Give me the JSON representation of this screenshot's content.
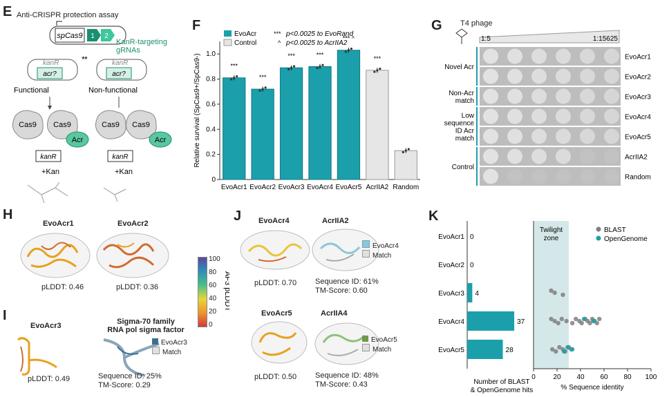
{
  "panels": {
    "e": {
      "letter": "E",
      "title": "Anti-CRISPR protection assay",
      "spcas9": "spCas9",
      "g1": "1",
      "g2": "2",
      "targeting1": "KanR-targeting",
      "targeting2": "gRNAs",
      "kanr": "kanR",
      "acr_q": "acr?",
      "functional": "Functional",
      "nonfunctional": "Non-functional",
      "cas9": "Cas9",
      "acr": "Acr",
      "kan": "+Kan",
      "star": "*"
    },
    "f": {
      "letter": "F",
      "legend_evo": "EvoAcr",
      "legend_ctrl": "Control",
      "note1_sym": "***",
      "note1": "p<0.0025 to EvoRand",
      "note2_sym": "^",
      "note2": "p<0.0025 to AcrIIA2",
      "ylabel": "Relative survival (SpCas9+/SpCas9-)"
    },
    "g": {
      "letter": "G",
      "title": "T4 phage",
      "dil_start": "1:5",
      "dil_end": "1:15625",
      "groups": [
        "Novel Acr",
        "Non-Acr match",
        "Low sequence ID Acr match",
        "Control"
      ],
      "rows": [
        "EvoAcr1",
        "EvoAcr2",
        "EvoAcr3",
        "EvoAcr4",
        "EvoAcr5",
        "AcrIIA2",
        "Random"
      ]
    },
    "h": {
      "letter": "H",
      "s1_name": "EvoAcr1",
      "s1_plddt": "pLDDT: 0.46",
      "s2_name": "EvoAcr2",
      "s2_plddt": "pLDDT: 0.36"
    },
    "i": {
      "letter": "I",
      "s1_name": "EvoAcr3",
      "s1_plddt": "pLDDT: 0.49",
      "match_title1": "Sigma-70 family",
      "match_title2": "RNA pol sigma factor",
      "leg_query": "EvoAcr3",
      "leg_match": "Match",
      "seqid": "Sequence ID: 25%",
      "tm": "TM-Score: 0.29"
    },
    "colorbar": {
      "label": "AF3 pLDDT",
      "ticks": [
        "100",
        "80",
        "60",
        "40",
        "20",
        "0"
      ]
    },
    "j": {
      "letter": "J",
      "s1_name": "EvoAcr4",
      "s1_plddt": "pLDDT: 0.70",
      "m1_name": "AcrIIA2",
      "m1_leg_query": "EvoAcr4",
      "m1_leg_match": "Match",
      "m1_seqid": "Sequence ID: 61%",
      "m1_tm": "TM-Score: 0.60",
      "s2_name": "EvoAcr5",
      "s2_plddt": "pLDDT: 0.50",
      "m2_name": "AcrIIA4",
      "m2_leg_query": "EvoAcr5",
      "m2_leg_match": "Match",
      "m2_seqid": "Sequence ID: 48%",
      "m2_tm": "TM-Score: 0.43"
    },
    "k": {
      "letter": "K",
      "twilight1": "Twilight",
      "twilight2": "zone",
      "legend_blast": "BLAST",
      "legend_og": "OpenGenome",
      "xlabel_left1": "Number of BLAST",
      "xlabel_left2": "& OpenGenome hits",
      "xlabel_right": "% Sequence identity"
    }
  },
  "chart_data": [
    {
      "type": "bar",
      "title": "",
      "xlabel": "",
      "ylabel": "Relative survival (SpCas9+/SpCas9-)",
      "ylim": [
        0,
        1.1
      ],
      "yticks": [
        "0",
        "0.2",
        "0.4",
        "0.6",
        "0.8",
        "1.0"
      ],
      "categories": [
        "EvoAcr1",
        "EvoAcr2",
        "EvoAcr3",
        "EvoAcr4",
        "EvoAcr5",
        "AcrIIA2",
        "Random"
      ],
      "values": [
        0.81,
        0.72,
        0.89,
        0.9,
        1.03,
        0.87,
        0.23
      ],
      "groups": [
        "EvoAcr",
        "EvoAcr",
        "EvoAcr",
        "EvoAcr",
        "EvoAcr",
        "Control",
        "Control"
      ],
      "annotations": [
        "***",
        "***",
        "***",
        "***",
        "*** ^",
        "***",
        ""
      ],
      "colors": {
        "EvoAcr": "#1a9fab",
        "Control": "#e6e6e6"
      }
    },
    {
      "type": "bar",
      "orientation": "horizontal",
      "xlabel": "Number of BLAST & OpenGenome hits",
      "categories": [
        "EvoAcr1",
        "EvoAcr2",
        "EvoAcr3",
        "EvoAcr4",
        "EvoAcr5"
      ],
      "values": [
        0,
        0,
        4,
        37,
        28
      ],
      "labels": [
        "0",
        "0",
        "4",
        "37",
        "28"
      ],
      "xlim": [
        0,
        50
      ],
      "color": "#1a9fab"
    },
    {
      "type": "scatter",
      "xlabel": "% Sequence identity",
      "xlim": [
        0,
        100
      ],
      "xticks": [
        "0",
        "20",
        "40",
        "60",
        "80",
        "100"
      ],
      "twilight_zone": [
        0,
        30
      ],
      "series": [
        {
          "name": "BLAST",
          "color": "#7f7f7f",
          "points": [
            {
              "cat": "EvoAcr3",
              "x": 15
            },
            {
              "cat": "EvoAcr3",
              "x": 18
            },
            {
              "cat": "EvoAcr3",
              "x": 25
            },
            {
              "cat": "EvoAcr4",
              "x": 15
            },
            {
              "cat": "EvoAcr4",
              "x": 18
            },
            {
              "cat": "EvoAcr4",
              "x": 21
            },
            {
              "cat": "EvoAcr4",
              "x": 24
            },
            {
              "cat": "EvoAcr4",
              "x": 28
            },
            {
              "cat": "EvoAcr4",
              "x": 33
            },
            {
              "cat": "EvoAcr4",
              "x": 36
            },
            {
              "cat": "EvoAcr4",
              "x": 39
            },
            {
              "cat": "EvoAcr4",
              "x": 41
            },
            {
              "cat": "EvoAcr4",
              "x": 44
            },
            {
              "cat": "EvoAcr4",
              "x": 46
            },
            {
              "cat": "EvoAcr4",
              "x": 48
            },
            {
              "cat": "EvoAcr4",
              "x": 50
            },
            {
              "cat": "EvoAcr4",
              "x": 52
            },
            {
              "cat": "EvoAcr4",
              "x": 54
            },
            {
              "cat": "EvoAcr4",
              "x": 56
            },
            {
              "cat": "EvoAcr5",
              "x": 16
            },
            {
              "cat": "EvoAcr5",
              "x": 19
            },
            {
              "cat": "EvoAcr5",
              "x": 22
            },
            {
              "cat": "EvoAcr5",
              "x": 25
            },
            {
              "cat": "EvoAcr5",
              "x": 27
            },
            {
              "cat": "EvoAcr5",
              "x": 30
            },
            {
              "cat": "EvoAcr5",
              "x": 32
            }
          ]
        },
        {
          "name": "OpenGenome",
          "color": "#1a9fab",
          "points": [
            {
              "cat": "EvoAcr4",
              "x": 43
            },
            {
              "cat": "EvoAcr4",
              "x": 51
            },
            {
              "cat": "EvoAcr5",
              "x": 26
            },
            {
              "cat": "EvoAcr5",
              "x": 29
            },
            {
              "cat": "EvoAcr5",
              "x": 33
            }
          ]
        }
      ]
    }
  ]
}
